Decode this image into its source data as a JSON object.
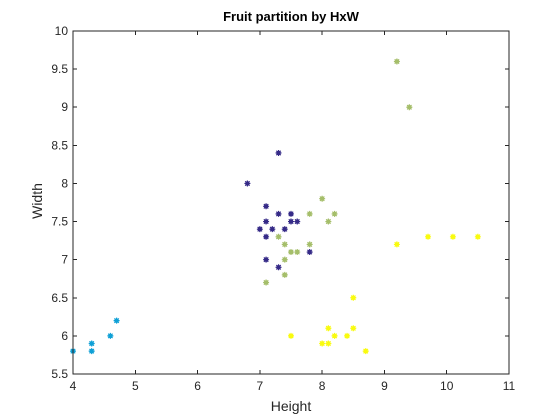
{
  "chart_data": {
    "type": "scatter",
    "title": "Fruit partition by HxW",
    "xlabel": "Height",
    "ylabel": "Width",
    "xlim": [
      4,
      11
    ],
    "ylim": [
      5.5,
      10
    ],
    "xticks": [
      "4",
      "5",
      "6",
      "7",
      "8",
      "9",
      "10",
      "11"
    ],
    "yticks": [
      "5.5",
      "6",
      "6.5",
      "7",
      "7.5",
      "8",
      "8.5",
      "9",
      "9.5",
      "10"
    ],
    "grid": false,
    "legend": "none",
    "colors": {
      "axis": "#262626",
      "background": "#ffffff"
    },
    "series": [
      {
        "color": "#352a87",
        "points": [
          [
            6.8,
            8.0
          ],
          [
            7.3,
            8.4
          ],
          [
            7.1,
            7.7
          ],
          [
            7.3,
            7.6
          ],
          [
            7.5,
            7.6
          ],
          [
            7.1,
            7.5
          ],
          [
            7.5,
            7.5
          ],
          [
            7.6,
            7.5
          ],
          [
            7.0,
            7.4
          ],
          [
            7.2,
            7.4
          ],
          [
            7.4,
            7.4
          ],
          [
            7.1,
            7.3
          ],
          [
            7.1,
            7.0
          ],
          [
            7.3,
            6.9
          ],
          [
            7.8,
            7.1
          ]
        ]
      },
      {
        "color": "#0fa0d6",
        "points": [
          [
            4.0,
            5.8
          ],
          [
            4.3,
            5.8
          ],
          [
            4.3,
            5.9
          ],
          [
            4.6,
            6.0
          ],
          [
            4.7,
            6.2
          ]
        ]
      },
      {
        "color": "#a5be6a",
        "points": [
          [
            9.2,
            9.6
          ],
          [
            9.4,
            9.0
          ],
          [
            8.0,
            7.8
          ],
          [
            7.8,
            7.6
          ],
          [
            8.2,
            7.6
          ],
          [
            8.1,
            7.5
          ],
          [
            7.3,
            7.3
          ],
          [
            7.8,
            7.2
          ],
          [
            7.4,
            7.2
          ],
          [
            7.5,
            7.1
          ],
          [
            7.6,
            7.1
          ],
          [
            7.4,
            7.0
          ],
          [
            7.4,
            6.8
          ],
          [
            7.1,
            6.7
          ]
        ]
      },
      {
        "color": "#f9fb0e",
        "points": [
          [
            8.5,
            6.5
          ],
          [
            9.2,
            7.2
          ],
          [
            9.7,
            7.3
          ],
          [
            10.1,
            7.3
          ],
          [
            10.5,
            7.3
          ],
          [
            7.5,
            6.0
          ],
          [
            8.1,
            6.1
          ],
          [
            8.5,
            6.1
          ],
          [
            8.2,
            6.0
          ],
          [
            8.4,
            6.0
          ],
          [
            8.0,
            5.9
          ],
          [
            8.1,
            5.9
          ],
          [
            8.7,
            5.8
          ]
        ]
      }
    ]
  }
}
